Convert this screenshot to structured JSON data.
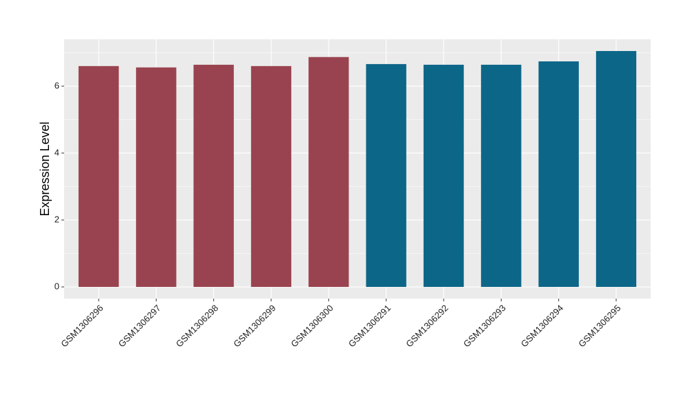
{
  "chart_data": {
    "type": "bar",
    "y_label": "Expression Level",
    "categories": [
      "GSM1306296",
      "GSM1306297",
      "GSM1306298",
      "GSM1306299",
      "GSM1306300",
      "GSM1306291",
      "GSM1306292",
      "GSM1306293",
      "GSM1306294",
      "GSM1306295"
    ],
    "values": [
      6.6,
      6.56,
      6.64,
      6.6,
      6.87,
      6.66,
      6.64,
      6.64,
      6.74,
      7.05
    ],
    "colors": [
      "#9a4350",
      "#9a4350",
      "#9a4350",
      "#9a4350",
      "#9a4350",
      "#0c6688",
      "#0c6688",
      "#0c6688",
      "#0c6688",
      "#0c6688"
    ],
    "ylim": [
      -0.35,
      7.4
    ],
    "yticks": [
      0,
      2,
      4,
      6
    ],
    "y_minor_gridlines": [
      1,
      3,
      5,
      7
    ],
    "grid": true
  }
}
